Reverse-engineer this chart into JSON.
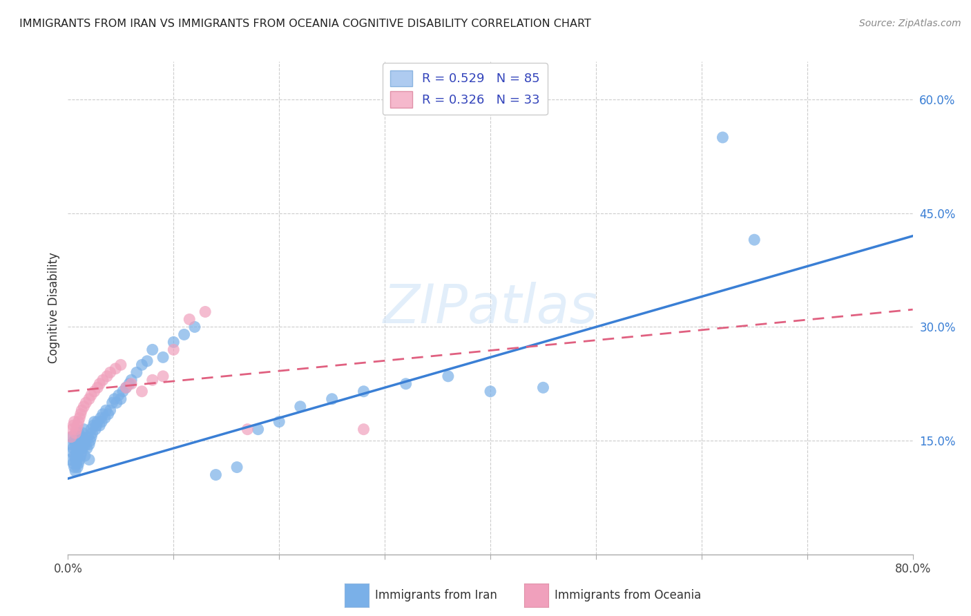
{
  "title": "IMMIGRANTS FROM IRAN VS IMMIGRANTS FROM OCEANIA COGNITIVE DISABILITY CORRELATION CHART",
  "source": "Source: ZipAtlas.com",
  "ylabel": "Cognitive Disability",
  "xlim": [
    0.0,
    0.8
  ],
  "ylim": [
    0.0,
    0.65
  ],
  "y_ticks_right": [
    0.15,
    0.3,
    0.45,
    0.6
  ],
  "y_tick_labels_right": [
    "15.0%",
    "30.0%",
    "45.0%",
    "60.0%"
  ],
  "legend_items": [
    {
      "label": "R = 0.529   N = 85",
      "facecolor": "#aecbf0",
      "edgecolor": "#8ab4e0"
    },
    {
      "label": "R = 0.326   N = 33",
      "facecolor": "#f5b8cc",
      "edgecolor": "#e090a8"
    }
  ],
  "series1_color": "#7ab0e8",
  "series2_color": "#f0a0bc",
  "regression1_color": "#3a7fd5",
  "regression2_color": "#e06080",
  "watermark": "ZIPatlas",
  "iran_slope": 0.4,
  "iran_intercept": 0.1,
  "oceania_slope": 0.135,
  "oceania_intercept": 0.215,
  "iran_x": [
    0.002,
    0.003,
    0.004,
    0.004,
    0.005,
    0.005,
    0.006,
    0.006,
    0.006,
    0.007,
    0.007,
    0.007,
    0.008,
    0.008,
    0.008,
    0.009,
    0.009,
    0.009,
    0.01,
    0.01,
    0.01,
    0.011,
    0.011,
    0.012,
    0.012,
    0.013,
    0.013,
    0.014,
    0.014,
    0.015,
    0.015,
    0.016,
    0.016,
    0.017,
    0.018,
    0.019,
    0.02,
    0.02,
    0.021,
    0.022,
    0.022,
    0.023,
    0.024,
    0.025,
    0.026,
    0.027,
    0.028,
    0.03,
    0.031,
    0.032,
    0.033,
    0.035,
    0.036,
    0.038,
    0.04,
    0.042,
    0.044,
    0.046,
    0.048,
    0.05,
    0.052,
    0.055,
    0.058,
    0.06,
    0.065,
    0.07,
    0.075,
    0.08,
    0.09,
    0.1,
    0.11,
    0.12,
    0.14,
    0.16,
    0.18,
    0.2,
    0.22,
    0.25,
    0.28,
    0.32,
    0.36,
    0.4,
    0.45,
    0.62,
    0.65
  ],
  "iran_y": [
    0.125,
    0.145,
    0.135,
    0.155,
    0.12,
    0.14,
    0.115,
    0.13,
    0.15,
    0.11,
    0.125,
    0.145,
    0.12,
    0.135,
    0.155,
    0.115,
    0.13,
    0.15,
    0.12,
    0.14,
    0.16,
    0.125,
    0.145,
    0.13,
    0.15,
    0.135,
    0.155,
    0.14,
    0.16,
    0.145,
    0.165,
    0.13,
    0.15,
    0.145,
    0.14,
    0.155,
    0.125,
    0.145,
    0.15,
    0.155,
    0.165,
    0.16,
    0.17,
    0.175,
    0.165,
    0.17,
    0.175,
    0.17,
    0.18,
    0.175,
    0.185,
    0.18,
    0.19,
    0.185,
    0.19,
    0.2,
    0.205,
    0.2,
    0.21,
    0.205,
    0.215,
    0.22,
    0.225,
    0.23,
    0.24,
    0.25,
    0.255,
    0.27,
    0.26,
    0.28,
    0.29,
    0.3,
    0.105,
    0.115,
    0.165,
    0.175,
    0.195,
    0.205,
    0.215,
    0.225,
    0.235,
    0.215,
    0.22,
    0.55,
    0.415
  ],
  "oceania_x": [
    0.003,
    0.004,
    0.005,
    0.006,
    0.007,
    0.008,
    0.009,
    0.01,
    0.011,
    0.012,
    0.013,
    0.015,
    0.017,
    0.02,
    0.022,
    0.025,
    0.028,
    0.03,
    0.033,
    0.037,
    0.04,
    0.045,
    0.05,
    0.055,
    0.06,
    0.07,
    0.08,
    0.09,
    0.1,
    0.115,
    0.13,
    0.17,
    0.28
  ],
  "oceania_y": [
    0.155,
    0.165,
    0.17,
    0.175,
    0.16,
    0.165,
    0.17,
    0.175,
    0.18,
    0.185,
    0.19,
    0.195,
    0.2,
    0.205,
    0.21,
    0.215,
    0.22,
    0.225,
    0.23,
    0.235,
    0.24,
    0.245,
    0.25,
    0.22,
    0.225,
    0.215,
    0.23,
    0.235,
    0.27,
    0.31,
    0.32,
    0.165,
    0.165
  ]
}
